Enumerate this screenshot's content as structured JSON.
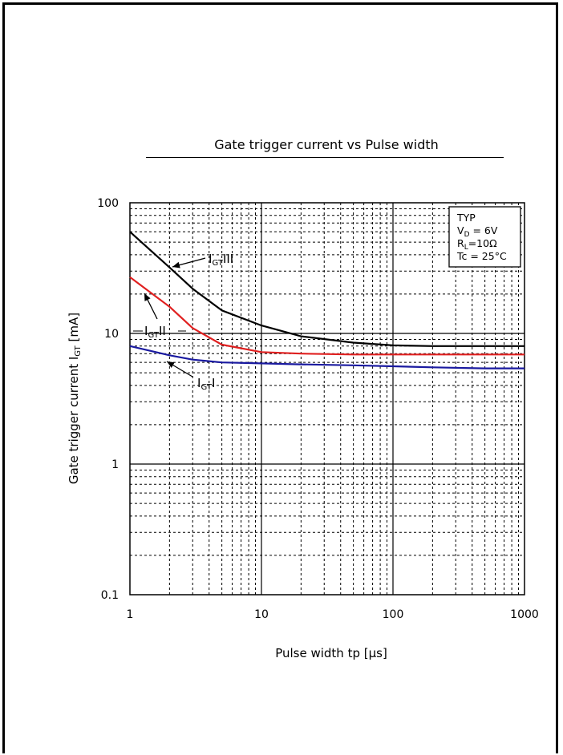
{
  "chart_data": {
    "type": "line",
    "title": "Gate trigger current  vs   Pulse width",
    "xlabel": "Pulse width  tp  [μs]",
    "ylabel": "Gate trigger current I_GT [mA]",
    "x_scale": "log",
    "y_scale": "log",
    "xlim": [
      1,
      1000
    ],
    "ylim": [
      0.1,
      100
    ],
    "x_ticks": [
      "1",
      "10",
      "100",
      "1000"
    ],
    "y_ticks": [
      "100",
      "10",
      "1",
      "0.1"
    ],
    "grid": true,
    "conditions": [
      "TYP",
      "V_D = 6V",
      "R_L=10Ω",
      "Tc = 25°C"
    ],
    "series": [
      {
        "name": "IGT III",
        "color": "#000000",
        "x": [
          1,
          2,
          3,
          5,
          10,
          20,
          50,
          100,
          200,
          500,
          1000
        ],
        "y": [
          60,
          32,
          22,
          15,
          11.5,
          9.5,
          8.5,
          8.1,
          8.0,
          8.0,
          8.0
        ]
      },
      {
        "name": "IGT II",
        "color": "#e02020",
        "x": [
          1,
          2,
          3,
          5,
          10,
          20,
          50,
          100,
          200,
          500,
          1000
        ],
        "y": [
          27,
          16,
          11,
          8.2,
          7.2,
          7.0,
          6.9,
          6.9,
          6.9,
          6.9,
          6.9
        ]
      },
      {
        "name": "IGT I",
        "color": "#1a1aa0",
        "x": [
          1,
          2,
          3,
          5,
          10,
          20,
          50,
          100,
          200,
          500,
          1000
        ],
        "y": [
          8.0,
          6.8,
          6.3,
          6.0,
          5.9,
          5.8,
          5.7,
          5.6,
          5.5,
          5.4,
          5.4
        ]
      }
    ]
  }
}
